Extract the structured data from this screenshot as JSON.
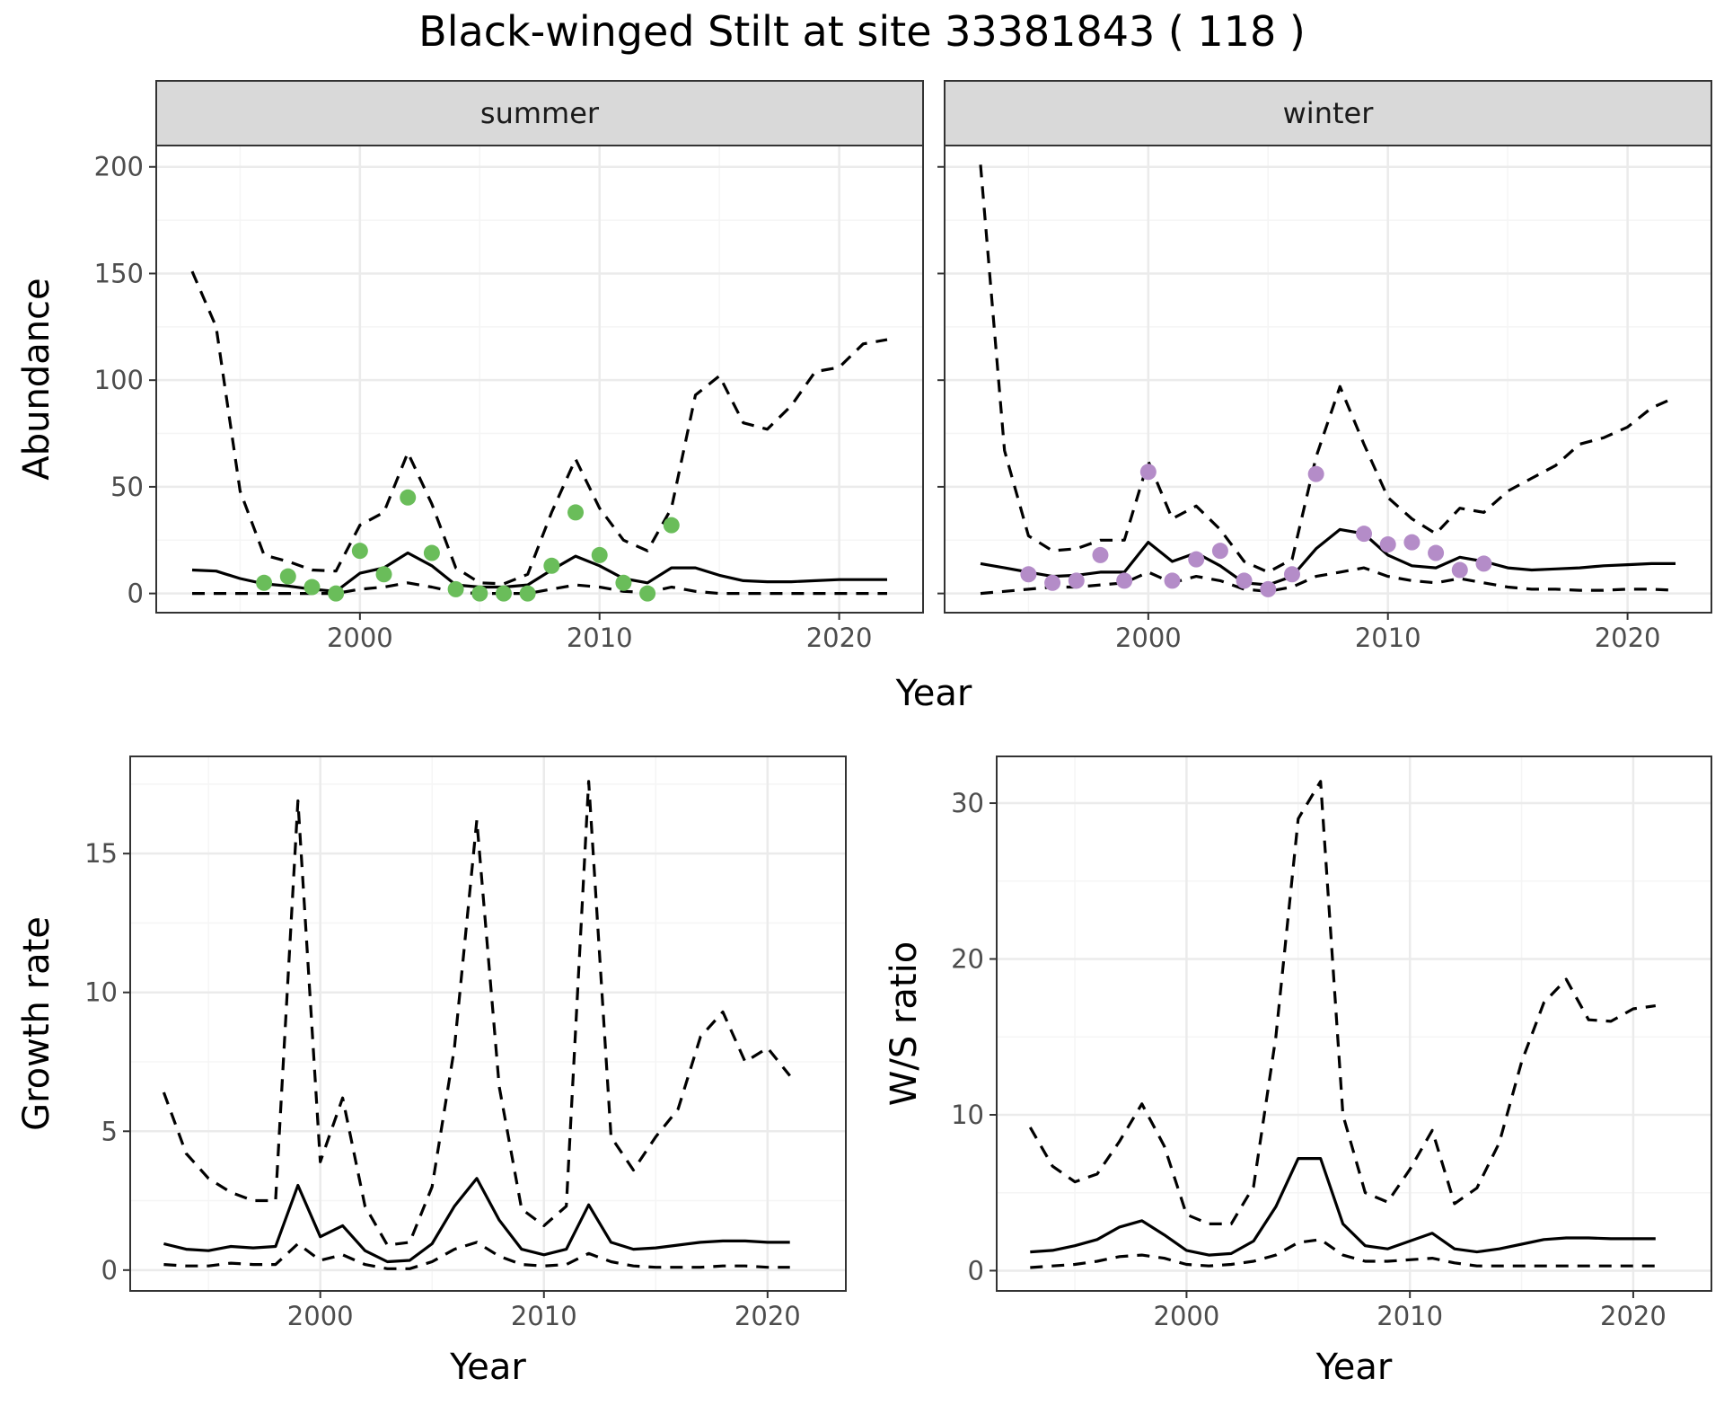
{
  "title": "Black-winged Stilt at site 33381843 ( 118 )",
  "colors": {
    "summer_points": "#6abd5a",
    "winter_points": "#b48cc8",
    "lines": "#000000",
    "strip_fill": "#d9d9d9",
    "grid_major": "#ebebeb",
    "grid_minor": "#f5f5f5"
  },
  "chart_data": [
    {
      "type": "line",
      "panel": "summer",
      "strip_label": "summer",
      "xlabel": "Year",
      "ylabel": "Abundance",
      "xlim": [
        1991.5,
        2023.5
      ],
      "ylim": [
        -9,
        210
      ],
      "xticks": [
        2000,
        2010,
        2020
      ],
      "yticks": [
        0,
        50,
        100,
        150,
        200
      ],
      "series": [
        {
          "style": "solid",
          "x": [
            1993,
            1994,
            1995,
            1996,
            1997,
            1998,
            1999,
            2000,
            2001,
            2002,
            2003,
            2004,
            2005,
            2006,
            2007,
            2008,
            2009,
            2010,
            2011,
            2012,
            2013,
            2014,
            2015,
            2016,
            2017,
            2018,
            2019,
            2020,
            2021,
            2022
          ],
          "values": [
            11,
            10.5,
            7,
            4.5,
            3.5,
            2,
            1,
            9.5,
            12,
            19,
            13,
            4,
            3,
            3,
            4,
            11,
            17.5,
            13,
            7,
            5,
            12,
            12,
            8.5,
            6,
            5.5,
            5.5,
            6,
            6.5,
            6.5,
            6.5
          ]
        },
        {
          "style": "dashed",
          "x": [
            1993,
            1994,
            1995,
            1996,
            1997,
            1998,
            1999,
            2000,
            2001,
            2002,
            2003,
            2004,
            2005,
            2006,
            2007,
            2008,
            2009,
            2010,
            2011,
            2012,
            2013,
            2014,
            2015,
            2016,
            2017,
            2018,
            2019,
            2020,
            2021,
            2022
          ],
          "values": [
            151,
            125,
            48,
            18,
            15,
            11,
            10.5,
            32,
            38,
            66,
            42,
            12,
            5,
            4.5,
            9,
            38,
            63,
            40,
            25,
            20,
            40,
            93,
            102,
            80,
            77,
            88,
            104,
            106,
            117,
            119
          ]
        },
        {
          "style": "dashed",
          "x": [
            1993,
            1994,
            1995,
            1996,
            1997,
            1998,
            1999,
            2000,
            2001,
            2002,
            2003,
            2004,
            2005,
            2006,
            2007,
            2008,
            2009,
            2010,
            2011,
            2012,
            2013,
            2014,
            2015,
            2016,
            2017,
            2018,
            2019,
            2020,
            2021,
            2022
          ],
          "values": [
            0,
            0,
            0,
            0,
            0,
            0,
            0,
            2,
            3,
            5,
            3,
            0.5,
            0,
            0,
            0,
            2,
            4,
            3,
            1,
            0.5,
            3,
            1,
            0,
            0,
            0,
            0,
            0,
            0,
            0,
            0
          ]
        },
        {
          "style": "points",
          "x": [
            1996,
            1997,
            1998,
            1999,
            2000,
            2001,
            2002,
            2003,
            2004,
            2005,
            2006,
            2007,
            2008,
            2009,
            2010,
            2011,
            2012,
            2013
          ],
          "values": [
            5,
            8,
            3,
            0,
            20,
            9,
            45,
            19,
            2,
            0,
            0,
            0,
            13,
            38,
            18,
            5,
            0,
            32
          ]
        }
      ]
    },
    {
      "type": "line",
      "panel": "winter",
      "strip_label": "winter",
      "xlabel": "Year",
      "ylabel": "Abundance",
      "xlim": [
        1991.5,
        2023.5
      ],
      "ylim": [
        -9,
        210
      ],
      "xticks": [
        2000,
        2010,
        2020
      ],
      "yticks": [
        0,
        50,
        100,
        150,
        200
      ],
      "series": [
        {
          "style": "solid",
          "x": [
            1993,
            1994,
            1995,
            1996,
            1997,
            1998,
            1999,
            2000,
            2001,
            2002,
            2003,
            2004,
            2005,
            2006,
            2007,
            2008,
            2009,
            2010,
            2011,
            2012,
            2013,
            2014,
            2015,
            2016,
            2017,
            2018,
            2019,
            2020,
            2021,
            2022
          ],
          "values": [
            14,
            12,
            10,
            8,
            8.5,
            10,
            10,
            24,
            15,
            19,
            13,
            5,
            4,
            8,
            21,
            30,
            28,
            18,
            13,
            12,
            17,
            15,
            12,
            11,
            11.5,
            12,
            13,
            13.5,
            14,
            14
          ]
        },
        {
          "style": "dashed",
          "x": [
            1993,
            1994,
            1995,
            1996,
            1997,
            1998,
            1999,
            2000,
            2001,
            2002,
            2003,
            2004,
            2005,
            2006,
            2007,
            2008,
            2009,
            2010,
            2011,
            2012,
            2013,
            2014,
            2015,
            2016,
            2017,
            2018,
            2019,
            2020,
            2021,
            2022
          ],
          "values": [
            201,
            67,
            27,
            20,
            21,
            25,
            25,
            62,
            35,
            41,
            30,
            15,
            10,
            16,
            64,
            97,
            70,
            45,
            35,
            28,
            40,
            38,
            48,
            54,
            60,
            70,
            73,
            78,
            87,
            92
          ]
        },
        {
          "style": "dashed",
          "x": [
            1993,
            1994,
            1995,
            1996,
            1997,
            1998,
            1999,
            2000,
            2001,
            2002,
            2003,
            2004,
            2005,
            2006,
            2007,
            2008,
            2009,
            2010,
            2011,
            2012,
            2013,
            2014,
            2015,
            2016,
            2017,
            2018,
            2019,
            2020,
            2021,
            2022
          ],
          "values": [
            0,
            1,
            2,
            3,
            3,
            4,
            5,
            10,
            5,
            8,
            6,
            2,
            1,
            3,
            8,
            10,
            12,
            8,
            6,
            5,
            7,
            5,
            3,
            2,
            2,
            1.5,
            1.5,
            2,
            2,
            1.5
          ]
        },
        {
          "style": "points",
          "x": [
            1995,
            1996,
            1997,
            1998,
            1999,
            2000,
            2001,
            2002,
            2003,
            2004,
            2005,
            2006,
            2007,
            2009,
            2010,
            2011,
            2012,
            2013,
            2014
          ],
          "values": [
            9,
            5,
            6,
            18,
            6,
            57,
            6,
            16,
            20,
            6,
            2,
            9,
            56,
            28,
            23,
            24,
            19,
            11,
            14
          ]
        }
      ]
    },
    {
      "type": "line",
      "panel": "growth",
      "xlabel": "Year",
      "ylabel": "Growth rate",
      "xlim": [
        1991.5,
        2023.5
      ],
      "ylim": [
        -0.75,
        18.5
      ],
      "xticks": [
        2000,
        2010,
        2020
      ],
      "yticks": [
        0,
        5,
        10,
        15
      ],
      "series": [
        {
          "style": "solid",
          "x": [
            1993,
            1994,
            1995,
            1996,
            1997,
            1998,
            1999,
            2000,
            2001,
            2002,
            2003,
            2004,
            2005,
            2006,
            2007,
            2008,
            2009,
            2010,
            2011,
            2012,
            2013,
            2014,
            2015,
            2016,
            2017,
            2018,
            2019,
            2020,
            2021
          ],
          "values": [
            0.95,
            0.75,
            0.7,
            0.85,
            0.8,
            0.85,
            3.05,
            1.2,
            1.6,
            0.7,
            0.3,
            0.35,
            0.95,
            2.3,
            3.3,
            1.8,
            0.75,
            0.55,
            0.75,
            2.35,
            1.0,
            0.75,
            0.8,
            0.9,
            1.0,
            1.05,
            1.05,
            1.0,
            1.0
          ]
        },
        {
          "style": "dashed",
          "x": [
            1993,
            1994,
            1995,
            1996,
            1997,
            1998,
            1999,
            2000,
            2001,
            2002,
            2003,
            2004,
            2005,
            2006,
            2007,
            2008,
            2009,
            2010,
            2011,
            2012,
            2013,
            2014,
            2015,
            2016,
            2017,
            2018,
            2019,
            2020,
            2021
          ],
          "values": [
            6.4,
            4.2,
            3.3,
            2.8,
            2.5,
            2.5,
            16.9,
            3.9,
            6.2,
            2.3,
            0.9,
            1.0,
            3.0,
            8.0,
            16.2,
            6.6,
            2.2,
            1.6,
            2.3,
            17.6,
            4.8,
            3.6,
            4.8,
            5.8,
            8.4,
            9.3,
            7.5,
            8.0,
            7.0
          ]
        },
        {
          "style": "dashed",
          "x": [
            1993,
            1994,
            1995,
            1996,
            1997,
            1998,
            1999,
            2000,
            2001,
            2002,
            2003,
            2004,
            2005,
            2006,
            2007,
            2008,
            2009,
            2010,
            2011,
            2012,
            2013,
            2014,
            2015,
            2016,
            2017,
            2018,
            2019,
            2020,
            2021
          ],
          "values": [
            0.2,
            0.15,
            0.15,
            0.25,
            0.2,
            0.2,
            0.95,
            0.35,
            0.55,
            0.2,
            0.05,
            0.05,
            0.3,
            0.75,
            1.0,
            0.5,
            0.2,
            0.15,
            0.2,
            0.6,
            0.3,
            0.15,
            0.1,
            0.1,
            0.1,
            0.15,
            0.15,
            0.1,
            0.1
          ]
        }
      ]
    },
    {
      "type": "line",
      "panel": "ws_ratio",
      "xlabel": "Year",
      "ylabel": "W/S ratio",
      "xlim": [
        1991.5,
        2023.5
      ],
      "ylim": [
        -1.3,
        33.0
      ],
      "xticks": [
        2000,
        2010,
        2020
      ],
      "yticks": [
        0,
        10,
        20,
        30
      ],
      "series": [
        {
          "style": "solid",
          "x": [
            1993,
            1994,
            1995,
            1996,
            1997,
            1998,
            1999,
            2000,
            2001,
            2002,
            2003,
            2004,
            2005,
            2006,
            2007,
            2008,
            2009,
            2010,
            2011,
            2012,
            2013,
            2014,
            2015,
            2016,
            2017,
            2018,
            2019,
            2020,
            2021
          ],
          "values": [
            1.2,
            1.3,
            1.6,
            2.0,
            2.8,
            3.2,
            2.3,
            1.3,
            1.0,
            1.1,
            1.9,
            4.1,
            7.2,
            7.2,
            3.0,
            1.6,
            1.4,
            1.9,
            2.4,
            1.4,
            1.2,
            1.4,
            1.7,
            2.0,
            2.1,
            2.1,
            2.05,
            2.05,
            2.05
          ]
        },
        {
          "style": "dashed",
          "x": [
            1993,
            1994,
            1995,
            1996,
            1997,
            1998,
            1999,
            2000,
            2001,
            2002,
            2003,
            2004,
            2005,
            2006,
            2007,
            2008,
            2009,
            2010,
            2011,
            2012,
            2013,
            2014,
            2015,
            2016,
            2017,
            2018,
            2019,
            2020,
            2021
          ],
          "values": [
            9.2,
            6.7,
            5.7,
            6.2,
            8.3,
            10.7,
            8.0,
            3.6,
            3.0,
            3.0,
            5.4,
            15.0,
            29.0,
            31.4,
            10.0,
            5.0,
            4.4,
            6.5,
            9.0,
            4.3,
            5.3,
            8.2,
            13.4,
            17.2,
            18.7,
            16.1,
            16.0,
            16.8,
            17.0
          ]
        },
        {
          "style": "dashed",
          "x": [
            1993,
            1994,
            1995,
            1996,
            1997,
            1998,
            1999,
            2000,
            2001,
            2002,
            2003,
            2004,
            2005,
            2006,
            2007,
            2008,
            2009,
            2010,
            2011,
            2012,
            2013,
            2014,
            2015,
            2016,
            2017,
            2018,
            2019,
            2020,
            2021
          ],
          "values": [
            0.2,
            0.3,
            0.4,
            0.6,
            0.9,
            1.0,
            0.8,
            0.4,
            0.3,
            0.4,
            0.6,
            1.0,
            1.8,
            2.0,
            1.0,
            0.6,
            0.6,
            0.7,
            0.8,
            0.5,
            0.3,
            0.3,
            0.3,
            0.3,
            0.3,
            0.3,
            0.3,
            0.3,
            0.3
          ]
        }
      ]
    }
  ]
}
